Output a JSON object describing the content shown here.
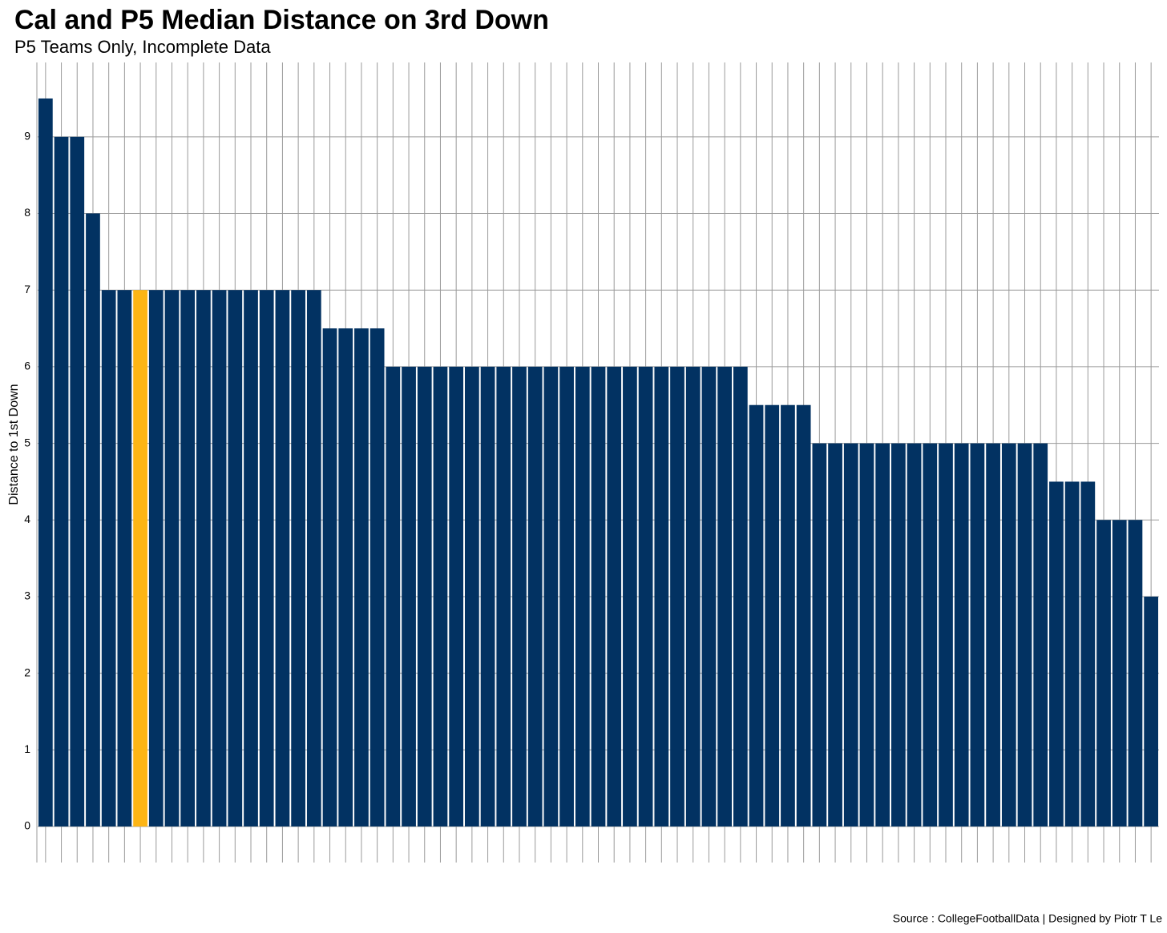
{
  "chart_data": {
    "type": "bar",
    "title": "Cal and P5 Median Distance on 3rd Down",
    "subtitle": "P5 Teams Only, Incomplete Data",
    "y_label": "Distance to 1st Down",
    "caption": "Source : CollegeFootballData | Designed by Piotr T Le",
    "values": [
      9.5,
      9,
      9,
      8,
      7,
      7,
      7,
      7,
      7,
      7,
      7,
      7,
      7,
      7,
      7,
      7,
      7,
      7,
      6.5,
      6.5,
      6.5,
      6.5,
      6,
      6,
      6,
      6,
      6,
      6,
      6,
      6,
      6,
      6,
      6,
      6,
      6,
      6,
      6,
      6,
      6,
      6,
      6,
      6,
      6,
      6,
      6,
      5.5,
      5.5,
      5.5,
      5.5,
      5,
      5,
      5,
      5,
      5,
      5,
      5,
      5,
      5,
      5,
      5,
      5,
      5,
      5,
      5,
      4.5,
      4.5,
      4.5,
      4,
      4,
      4,
      3
    ],
    "color": "#023262",
    "highlight_index": 6,
    "highlight_color": "#FDB515",
    "ylim": [
      -0.47,
      9.97
    ],
    "yticks": [
      0,
      1,
      2,
      3,
      4,
      5,
      6,
      7,
      8,
      9
    ],
    "grid": true
  }
}
